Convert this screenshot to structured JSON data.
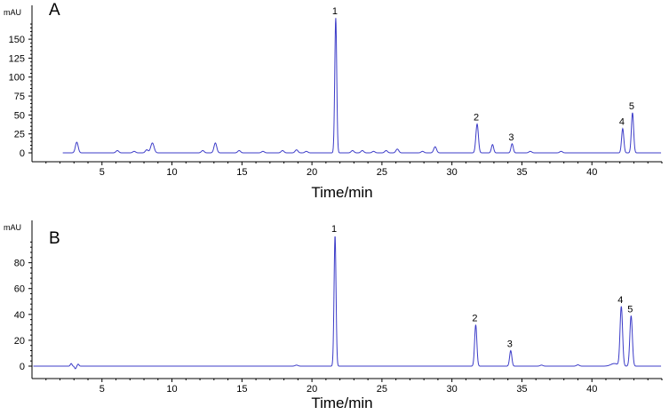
{
  "chart_data": [
    {
      "type": "line",
      "panel_label": "A",
      "ylabel": "mAU",
      "xlabel": "Time/min",
      "xlim": [
        0,
        45
      ],
      "ylim": [
        -8,
        190
      ],
      "x_ticks": [
        5,
        10,
        15,
        20,
        25,
        30,
        35,
        40
      ],
      "y_ticks": [
        0,
        25,
        50,
        75,
        100,
        125,
        150
      ],
      "baseline": 0,
      "peaks": [
        {
          "t": 3.2,
          "h": 14,
          "w": 0.1
        },
        {
          "t": 6.1,
          "h": 3,
          "w": 0.1
        },
        {
          "t": 7.3,
          "h": 2,
          "w": 0.1
        },
        {
          "t": 8.2,
          "h": 4,
          "w": 0.1
        },
        {
          "t": 8.6,
          "h": 13,
          "w": 0.12
        },
        {
          "t": 12.2,
          "h": 3,
          "w": 0.1
        },
        {
          "t": 13.1,
          "h": 13,
          "w": 0.1
        },
        {
          "t": 14.8,
          "h": 3,
          "w": 0.1
        },
        {
          "t": 16.5,
          "h": 2,
          "w": 0.1
        },
        {
          "t": 17.9,
          "h": 3,
          "w": 0.1
        },
        {
          "t": 18.9,
          "h": 4,
          "w": 0.1
        },
        {
          "t": 19.6,
          "h": 2,
          "w": 0.1
        },
        {
          "t": 21.7,
          "h": 178,
          "w": 0.07
        },
        {
          "t": 22.9,
          "h": 3,
          "w": 0.1
        },
        {
          "t": 23.6,
          "h": 3,
          "w": 0.1
        },
        {
          "t": 24.4,
          "h": 2,
          "w": 0.1
        },
        {
          "t": 25.3,
          "h": 3,
          "w": 0.1
        },
        {
          "t": 26.1,
          "h": 5,
          "w": 0.1
        },
        {
          "t": 27.9,
          "h": 2,
          "w": 0.1
        },
        {
          "t": 28.8,
          "h": 8,
          "w": 0.1
        },
        {
          "t": 31.8,
          "h": 38,
          "w": 0.09
        },
        {
          "t": 32.9,
          "h": 11,
          "w": 0.08
        },
        {
          "t": 34.3,
          "h": 12,
          "w": 0.08
        },
        {
          "t": 35.6,
          "h": 2,
          "w": 0.1
        },
        {
          "t": 37.8,
          "h": 2,
          "w": 0.1
        },
        {
          "t": 42.2,
          "h": 32,
          "w": 0.08
        },
        {
          "t": 42.9,
          "h": 53,
          "w": 0.08
        }
      ],
      "peak_labels": [
        {
          "label": "1",
          "t": 21.7,
          "h": 178
        },
        {
          "label": "2",
          "t": 31.8,
          "h": 38
        },
        {
          "label": "3",
          "t": 34.3,
          "h": 12
        },
        {
          "label": "4",
          "t": 42.2,
          "h": 32
        },
        {
          "label": "5",
          "t": 42.9,
          "h": 53
        }
      ],
      "line_color": "#3c3cc8"
    },
    {
      "type": "line",
      "panel_label": "B",
      "ylabel": "mAU",
      "xlabel": "Time/min",
      "xlim": [
        0,
        45
      ],
      "ylim": [
        -5,
        110
      ],
      "x_ticks": [
        5,
        10,
        15,
        20,
        25,
        30,
        35,
        40
      ],
      "y_ticks": [
        0,
        20,
        40,
        60,
        80
      ],
      "baseline": 0,
      "peaks": [
        {
          "t": 2.8,
          "h": 2,
          "w": 0.06
        },
        {
          "t": 3.1,
          "h": -2,
          "w": 0.06
        },
        {
          "t": 3.3,
          "h": 1.5,
          "w": 0.06
        },
        {
          "t": 18.9,
          "h": 0.8,
          "w": 0.1
        },
        {
          "t": 21.65,
          "h": 101,
          "w": 0.07
        },
        {
          "t": 31.7,
          "h": 32,
          "w": 0.08
        },
        {
          "t": 34.2,
          "h": 12,
          "w": 0.08
        },
        {
          "t": 36.4,
          "h": 0.8,
          "w": 0.1
        },
        {
          "t": 39.0,
          "h": 1.0,
          "w": 0.1
        },
        {
          "t": 41.6,
          "h": 2.0,
          "w": 0.25
        },
        {
          "t": 42.1,
          "h": 46,
          "w": 0.09
        },
        {
          "t": 42.8,
          "h": 39,
          "w": 0.09
        }
      ],
      "peak_labels": [
        {
          "label": "1",
          "t": 21.65,
          "h": 101
        },
        {
          "label": "2",
          "t": 31.7,
          "h": 32
        },
        {
          "label": "3",
          "t": 34.2,
          "h": 12
        },
        {
          "label": "4",
          "t": 42.1,
          "h": 46
        },
        {
          "label": "5",
          "t": 42.8,
          "h": 39
        }
      ],
      "line_color": "#3c3cc8"
    }
  ]
}
